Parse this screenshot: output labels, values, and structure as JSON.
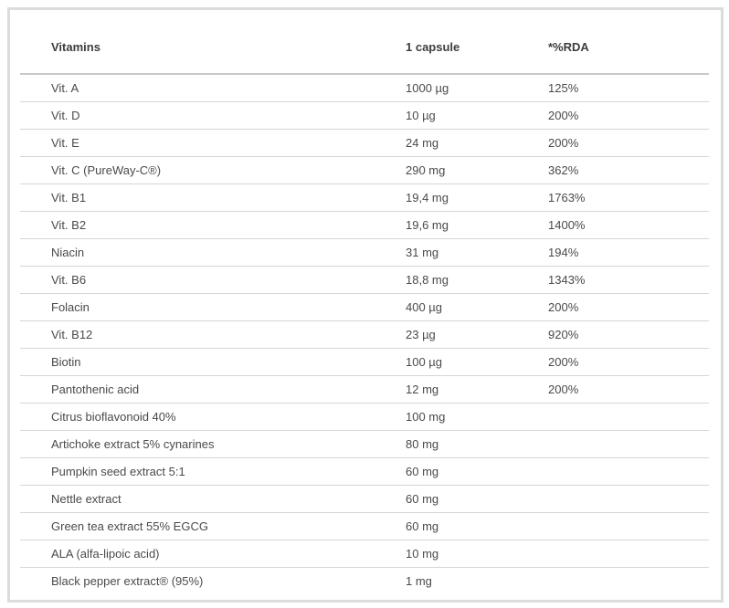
{
  "table": {
    "headers": [
      "Vitamins",
      "1 capsule",
      "*%RDA"
    ],
    "rows": [
      [
        "Vit. A",
        "1000 µg",
        "125%"
      ],
      [
        "Vit. D",
        "10 µg",
        "200%"
      ],
      [
        "Vit. E",
        "24 mg",
        "200%"
      ],
      [
        "Vit. C (PureWay-C®)",
        "290 mg",
        "362%"
      ],
      [
        "Vit. B1",
        "19,4 mg",
        "1763%"
      ],
      [
        "Vit. B2",
        "19,6 mg",
        "1400%"
      ],
      [
        "Niacin",
        "31 mg",
        "194%"
      ],
      [
        "Vit. B6",
        "18,8 mg",
        "1343%"
      ],
      [
        "Folacin",
        "400 µg",
        "200%"
      ],
      [
        "Vit. B12",
        "23 µg",
        "920%"
      ],
      [
        "Biotin",
        "100 µg",
        "200%"
      ],
      [
        "Pantothenic acid",
        "12 mg",
        "200%"
      ],
      [
        "Citrus bioflavonoid 40%",
        "100 mg",
        ""
      ],
      [
        "Artichoke extract 5% cynarines",
        "80 mg",
        ""
      ],
      [
        "Pumpkin seed extract 5:1",
        "60 mg",
        ""
      ],
      [
        "Nettle extract",
        "60 mg",
        ""
      ],
      [
        "Green tea extract 55% EGCG",
        "60 mg",
        ""
      ],
      [
        "ALA (alfa-lipoic acid)",
        "10 mg",
        ""
      ],
      [
        "Black pepper extract® (95%)",
        "1 mg",
        ""
      ]
    ]
  }
}
